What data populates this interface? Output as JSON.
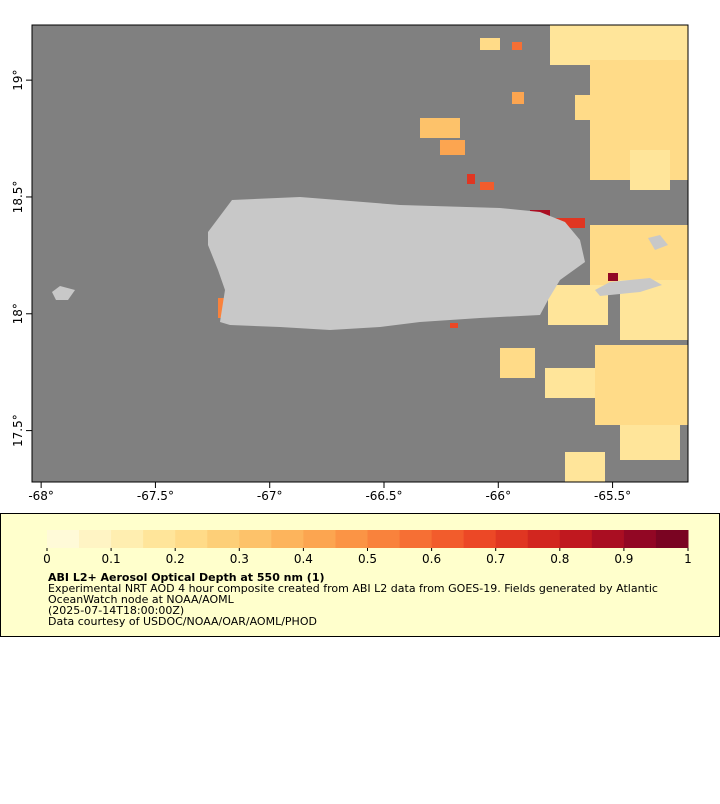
{
  "map": {
    "xlim": [
      -68.04,
      -65.17
    ],
    "ylim": [
      17.28,
      19.236
    ],
    "xticks": [
      {
        "value": -68,
        "label": "-68°"
      },
      {
        "value": -67.5,
        "label": "-67.5°"
      },
      {
        "value": -67,
        "label": "-67°"
      },
      {
        "value": -66.5,
        "label": "-66.5°"
      },
      {
        "value": -66,
        "label": "-66°"
      },
      {
        "value": -65.5,
        "label": "-65.5°"
      }
    ],
    "yticks": [
      {
        "value": 17.5,
        "label": "17.5°"
      },
      {
        "value": 18,
        "label": "18°"
      },
      {
        "value": 18.5,
        "label": "18.5°"
      },
      {
        "value": 19,
        "label": "19°"
      }
    ]
  },
  "colorbar": {
    "lim": [
      0,
      1
    ],
    "ticks": [
      0,
      0.1,
      0.2,
      0.3,
      0.4,
      0.5,
      0.6,
      0.7,
      0.8,
      0.9,
      1
    ],
    "colors": [
      "#fffad8",
      "#fff4c4",
      "#ffeeb0",
      "#ffe59a",
      "#ffdb88",
      "#fdcf78",
      "#fdc26a",
      "#fdb45c",
      "#fca550",
      "#fb9445",
      "#f9823c",
      "#f66f34",
      "#f25c2c",
      "#ec4826",
      "#e03622",
      "#d2261f",
      "#c0181f",
      "#aa0e22",
      "#920724",
      "#7a0422"
    ]
  },
  "legend": {
    "title": "ABI L2+ Aerosol Optical Depth at 550 nm (1)",
    "lines": [
      "Experimental NRT AOD 4 hour composite created from ABI L2 data from GOES-19. Fields generated by Atlantic",
      "OceanWatch node at NOAA/AOML",
      "(2025-07-14T18:00:00Z)",
      "Data courtesy of USDOC/NOAA/OAR/AOML/PHOD"
    ]
  }
}
